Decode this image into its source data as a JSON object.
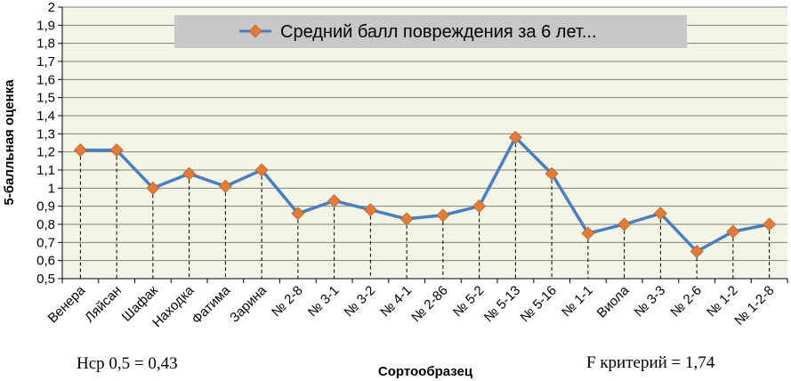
{
  "chart_data": {
    "type": "line",
    "title": "",
    "xlabel": "Сортообразец",
    "ylabel": "5-балльная оценка",
    "ylim": [
      0.5,
      2
    ],
    "yticks": [
      "0,5",
      "0,6",
      "0,7",
      "0,8",
      "0,9",
      "1",
      "1,1",
      "1,2",
      "1,3",
      "1,4",
      "1,5",
      "1,6",
      "1,7",
      "1,8",
      "1,9",
      "2"
    ],
    "grid": true,
    "legend_position": "top",
    "categories": [
      "Венера",
      "Ляйсан",
      "Шафак",
      "Находка",
      "Фатима",
      "Зарина",
      "№ 2-8",
      "№ 3-1",
      "№ 3-2",
      "№ 4-1",
      "№ 2-86",
      "№ 5-2",
      "№ 5-13",
      "№ 5-16",
      "№ 1-1",
      "Виола",
      "№ 3-3",
      "№ 2-6",
      "№ 1-2",
      "№ 1-2-8"
    ],
    "series": [
      {
        "name": "Средний балл повреждения за 6 лет...",
        "values": [
          1.21,
          1.21,
          1.0,
          1.08,
          1.01,
          1.1,
          0.86,
          0.93,
          0.88,
          0.83,
          0.85,
          0.9,
          1.28,
          1.08,
          0.75,
          0.8,
          0.86,
          0.65,
          0.76,
          0.8
        ],
        "line_color": "#4a7ebf",
        "marker_color": "#e07b39"
      }
    ]
  },
  "notes": {
    "lsd": "Нср 0,5 = 0,43",
    "f_criterion": "F критерий = 1,74"
  },
  "colors": {
    "plot_background": "#f3f6e6",
    "legend_background": "#c8c8c8",
    "grid": "#7f7f7f"
  }
}
